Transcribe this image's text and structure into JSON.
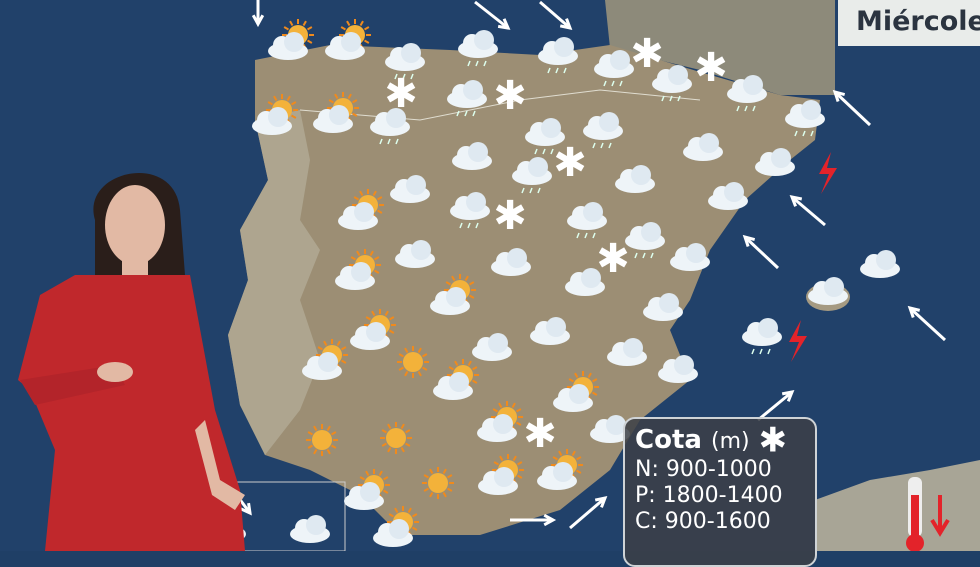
{
  "header": {
    "day_label": "Miércole"
  },
  "legend": {
    "title": "Cota",
    "unit": "(m)",
    "symbol": "snowflake-icon",
    "rows": [
      "N: 900-1000",
      "P: 1800-1400",
      "C: 900-1600"
    ]
  },
  "icons": [
    "cloud-rain-icon",
    "sun-cloud-rain-icon",
    "cloud-icon",
    "sun-cloud-icon",
    "sun-icon",
    "snowflake-icon",
    "lightning-icon",
    "wind-arrow-icon",
    "thermometer-down-icon"
  ],
  "colors": {
    "sea": "#1f3f66",
    "land": "#9c8e74",
    "presenter_dress": "#c0282c",
    "lightning": "#e3232a",
    "legend_bg": "#3c4046"
  }
}
